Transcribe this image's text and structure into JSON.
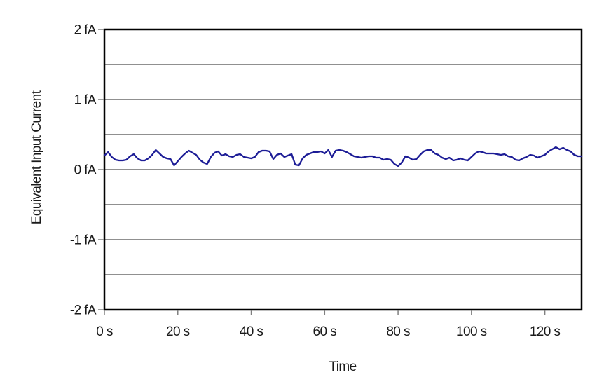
{
  "page": {
    "background": "#ffffff"
  },
  "colors": {
    "line": "#1c1c96",
    "grid": "#4d4d4d",
    "axis": "#000000",
    "tick": "#808080",
    "text": "#1a1a1a",
    "background": "#ffffff"
  },
  "chart_data": {
    "type": "line",
    "title": "",
    "xlabel": "Time",
    "ylabel": "Equivalent Input Current",
    "xlim": [
      0,
      130
    ],
    "ylim": [
      -2,
      2
    ],
    "grid": "horizontal",
    "legend": "none",
    "gridlines_y": [
      2,
      1.5,
      1,
      0.5,
      0,
      -0.5,
      -1,
      -1.5,
      -2
    ],
    "yticks": [
      {
        "value": 2,
        "label": "2 fA"
      },
      {
        "value": 1,
        "label": "1 fA"
      },
      {
        "value": 0,
        "label": "0 fA"
      },
      {
        "value": -1,
        "label": "-1 fA"
      },
      {
        "value": -2,
        "label": "-2 fA"
      }
    ],
    "xticks": [
      {
        "value": 0,
        "label": "0 s"
      },
      {
        "value": 20,
        "label": "20 s"
      },
      {
        "value": 40,
        "label": "40 s"
      },
      {
        "value": 60,
        "label": "60 s"
      },
      {
        "value": 80,
        "label": "80 s"
      },
      {
        "value": 100,
        "label": "100 s"
      },
      {
        "value": 120,
        "label": "120 s"
      }
    ],
    "series": [
      {
        "name": "equivalent-input-current",
        "color": "#1c1c96",
        "unit_x": "s",
        "unit_y": "fA",
        "x": [
          0,
          1,
          2,
          3,
          4,
          5,
          6,
          7,
          8,
          9,
          10,
          11,
          12,
          13,
          14,
          15,
          16,
          17,
          18,
          19,
          20,
          21,
          22,
          23,
          24,
          25,
          26,
          27,
          28,
          29,
          30,
          31,
          32,
          33,
          34,
          35,
          36,
          37,
          38,
          39,
          40,
          41,
          42,
          43,
          44,
          45,
          46,
          47,
          48,
          49,
          50,
          51,
          52,
          53,
          54,
          55,
          56,
          57,
          58,
          59,
          60,
          61,
          62,
          63,
          64,
          65,
          66,
          67,
          68,
          69,
          70,
          71,
          72,
          73,
          74,
          75,
          76,
          77,
          78,
          79,
          80,
          81,
          82,
          83,
          84,
          85,
          86,
          87,
          88,
          89,
          90,
          91,
          92,
          93,
          94,
          95,
          96,
          97,
          98,
          99,
          100,
          101,
          102,
          103,
          104,
          105,
          106,
          107,
          108,
          109,
          110,
          111,
          112,
          113,
          114,
          115,
          116,
          117,
          118,
          119,
          120,
          121,
          122,
          123,
          124,
          125,
          126,
          127,
          128,
          129,
          130
        ],
        "y": [
          0.2,
          0.25,
          0.18,
          0.14,
          0.13,
          0.13,
          0.14,
          0.19,
          0.22,
          0.16,
          0.13,
          0.13,
          0.16,
          0.21,
          0.28,
          0.23,
          0.18,
          0.16,
          0.15,
          0.06,
          0.12,
          0.18,
          0.23,
          0.27,
          0.24,
          0.21,
          0.14,
          0.1,
          0.08,
          0.18,
          0.24,
          0.26,
          0.2,
          0.22,
          0.19,
          0.18,
          0.21,
          0.22,
          0.18,
          0.17,
          0.16,
          0.18,
          0.25,
          0.27,
          0.27,
          0.26,
          0.15,
          0.21,
          0.23,
          0.18,
          0.2,
          0.22,
          0.07,
          0.06,
          0.16,
          0.21,
          0.23,
          0.25,
          0.25,
          0.26,
          0.23,
          0.28,
          0.18,
          0.27,
          0.28,
          0.27,
          0.25,
          0.22,
          0.19,
          0.18,
          0.17,
          0.18,
          0.19,
          0.19,
          0.17,
          0.17,
          0.14,
          0.15,
          0.14,
          0.08,
          0.05,
          0.1,
          0.19,
          0.17,
          0.14,
          0.15,
          0.21,
          0.26,
          0.28,
          0.28,
          0.23,
          0.21,
          0.17,
          0.15,
          0.17,
          0.13,
          0.14,
          0.16,
          0.14,
          0.13,
          0.18,
          0.23,
          0.26,
          0.25,
          0.23,
          0.23,
          0.23,
          0.22,
          0.21,
          0.22,
          0.19,
          0.18,
          0.14,
          0.13,
          0.16,
          0.18,
          0.21,
          0.2,
          0.17,
          0.19,
          0.21,
          0.26,
          0.29,
          0.32,
          0.29,
          0.31,
          0.28,
          0.26,
          0.21,
          0.19,
          0.19
        ]
      }
    ]
  }
}
